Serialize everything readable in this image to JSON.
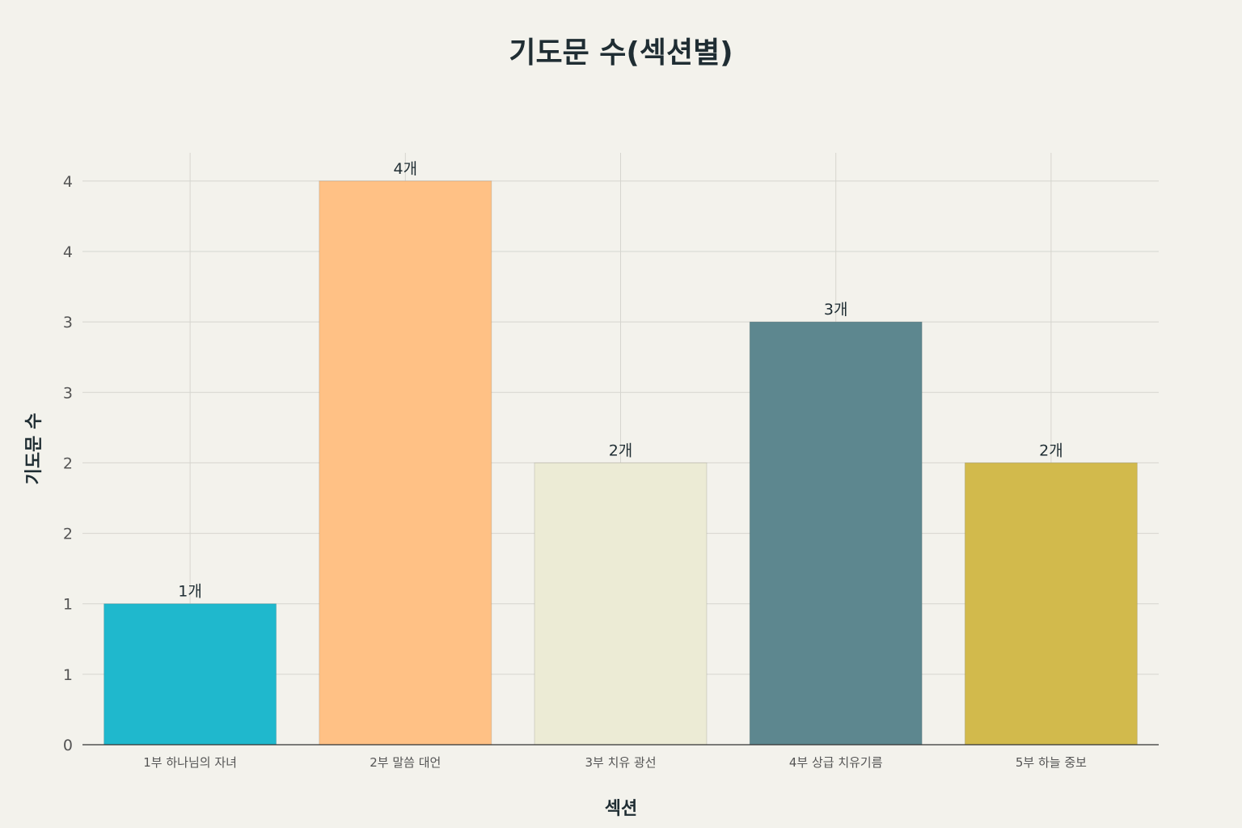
{
  "chart_data": {
    "type": "bar",
    "title": "기도문 수(섹션별)",
    "xlabel": "섹션",
    "ylabel": "기도문 수",
    "categories": [
      "1부 하나님의 자녀",
      "2부 말씀 대언",
      "3부 치유 광선",
      "4부 상급 치유기름",
      "5부 하늘 중보"
    ],
    "values": [
      1,
      4,
      2,
      3,
      2
    ],
    "value_labels": [
      "1개",
      "4개",
      "2개",
      "3개",
      "2개"
    ],
    "colors": [
      "#1fb8cd",
      "#ffc185",
      "#ecebd5",
      "#5d878f",
      "#d2ba4c"
    ],
    "ylim": [
      0,
      4.2
    ],
    "y_tick_values": [
      0,
      0.5,
      1,
      1.5,
      2,
      2.5,
      3,
      3.5,
      4
    ],
    "y_tick_labels": [
      "0",
      "1",
      "1",
      "2",
      "2",
      "3",
      "3",
      "4",
      "4"
    ],
    "grid": true,
    "legend": "none"
  }
}
